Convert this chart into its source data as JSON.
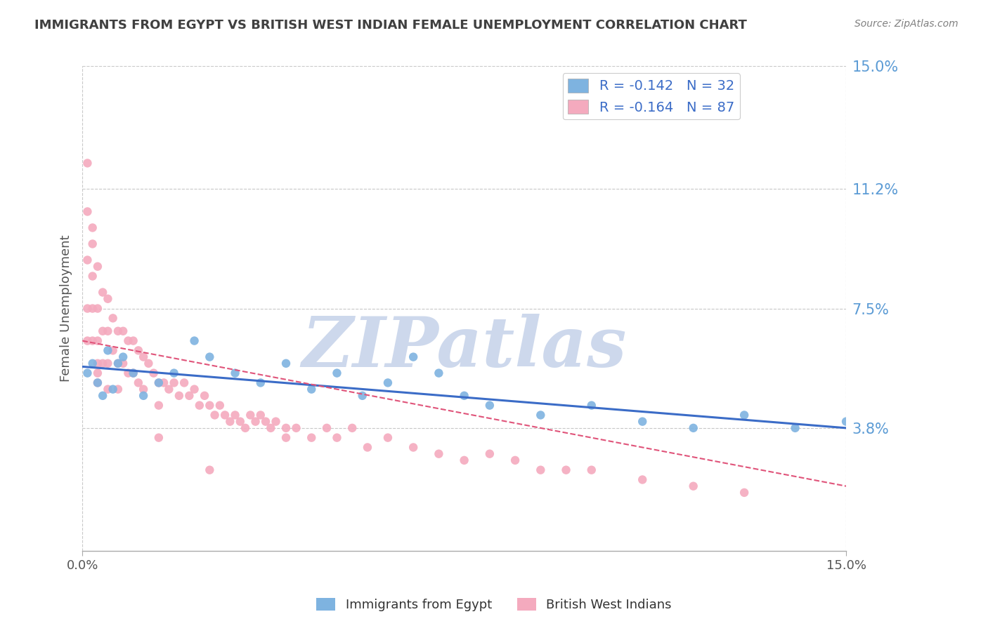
{
  "title": "IMMIGRANTS FROM EGYPT VS BRITISH WEST INDIAN FEMALE UNEMPLOYMENT CORRELATION CHART",
  "source_text": "Source: ZipAtlas.com",
  "ylabel": "Female Unemployment",
  "watermark": "ZIPatlas",
  "xlim": [
    0,
    0.15
  ],
  "ylim": [
    0,
    0.15
  ],
  "yticks": [
    0.038,
    0.075,
    0.112,
    0.15
  ],
  "ytick_labels": [
    "3.8%",
    "7.5%",
    "11.2%",
    "15.0%"
  ],
  "xtick_labels": [
    "0.0%",
    "15.0%"
  ],
  "xticks": [
    0,
    0.15
  ],
  "legend_entry1": "R = -0.142   N = 32",
  "legend_entry2": "R = -0.164   N = 87",
  "legend_label1": "Immigrants from Egypt",
  "legend_label2": "British West Indians",
  "color_blue": "#7EB3E0",
  "color_pink": "#F4AABE",
  "color_blue_line": "#3B6CC7",
  "color_pink_line": "#E0547A",
  "color_grid": "#C8C8C8",
  "color_right_labels": "#5B9BD5",
  "background_color": "#FFFFFF",
  "title_color": "#404040",
  "source_color": "#808080",
  "watermark_color": "#CDD8EC",
  "egypt_x": [
    0.001,
    0.002,
    0.003,
    0.004,
    0.005,
    0.006,
    0.007,
    0.008,
    0.01,
    0.012,
    0.015,
    0.018,
    0.022,
    0.025,
    0.03,
    0.035,
    0.04,
    0.045,
    0.05,
    0.055,
    0.06,
    0.065,
    0.07,
    0.075,
    0.08,
    0.09,
    0.1,
    0.11,
    0.12,
    0.13,
    0.14,
    0.15
  ],
  "egypt_y": [
    0.055,
    0.058,
    0.052,
    0.048,
    0.062,
    0.05,
    0.058,
    0.06,
    0.055,
    0.048,
    0.052,
    0.055,
    0.065,
    0.06,
    0.055,
    0.052,
    0.058,
    0.05,
    0.055,
    0.048,
    0.052,
    0.06,
    0.055,
    0.048,
    0.045,
    0.042,
    0.045,
    0.04,
    0.038,
    0.042,
    0.038,
    0.04
  ],
  "bwi_x": [
    0.001,
    0.001,
    0.001,
    0.001,
    0.002,
    0.002,
    0.002,
    0.002,
    0.003,
    0.003,
    0.003,
    0.003,
    0.003,
    0.004,
    0.004,
    0.004,
    0.005,
    0.005,
    0.005,
    0.005,
    0.006,
    0.006,
    0.007,
    0.007,
    0.007,
    0.008,
    0.008,
    0.009,
    0.009,
    0.01,
    0.01,
    0.011,
    0.011,
    0.012,
    0.012,
    0.013,
    0.014,
    0.015,
    0.015,
    0.016,
    0.017,
    0.018,
    0.019,
    0.02,
    0.021,
    0.022,
    0.023,
    0.024,
    0.025,
    0.026,
    0.027,
    0.028,
    0.029,
    0.03,
    0.031,
    0.032,
    0.033,
    0.034,
    0.035,
    0.036,
    0.037,
    0.038,
    0.04,
    0.04,
    0.042,
    0.045,
    0.048,
    0.05,
    0.053,
    0.056,
    0.06,
    0.065,
    0.07,
    0.075,
    0.08,
    0.085,
    0.09,
    0.095,
    0.1,
    0.11,
    0.12,
    0.13,
    0.001,
    0.002,
    0.003,
    0.015,
    0.025
  ],
  "bwi_y": [
    0.105,
    0.09,
    0.075,
    0.065,
    0.1,
    0.085,
    0.075,
    0.065,
    0.088,
    0.075,
    0.065,
    0.058,
    0.052,
    0.08,
    0.068,
    0.058,
    0.078,
    0.068,
    0.058,
    0.05,
    0.072,
    0.062,
    0.068,
    0.058,
    0.05,
    0.068,
    0.058,
    0.065,
    0.055,
    0.065,
    0.055,
    0.062,
    0.052,
    0.06,
    0.05,
    0.058,
    0.055,
    0.052,
    0.045,
    0.052,
    0.05,
    0.052,
    0.048,
    0.052,
    0.048,
    0.05,
    0.045,
    0.048,
    0.045,
    0.042,
    0.045,
    0.042,
    0.04,
    0.042,
    0.04,
    0.038,
    0.042,
    0.04,
    0.042,
    0.04,
    0.038,
    0.04,
    0.038,
    0.035,
    0.038,
    0.035,
    0.038,
    0.035,
    0.038,
    0.032,
    0.035,
    0.032,
    0.03,
    0.028,
    0.03,
    0.028,
    0.025,
    0.025,
    0.025,
    0.022,
    0.02,
    0.018,
    0.12,
    0.095,
    0.055,
    0.035,
    0.025
  ],
  "egypt_trend_x": [
    0,
    0.15
  ],
  "egypt_trend_y": [
    0.057,
    0.038
  ],
  "bwi_trend_x": [
    0,
    0.15
  ],
  "bwi_trend_y": [
    0.065,
    0.02
  ]
}
